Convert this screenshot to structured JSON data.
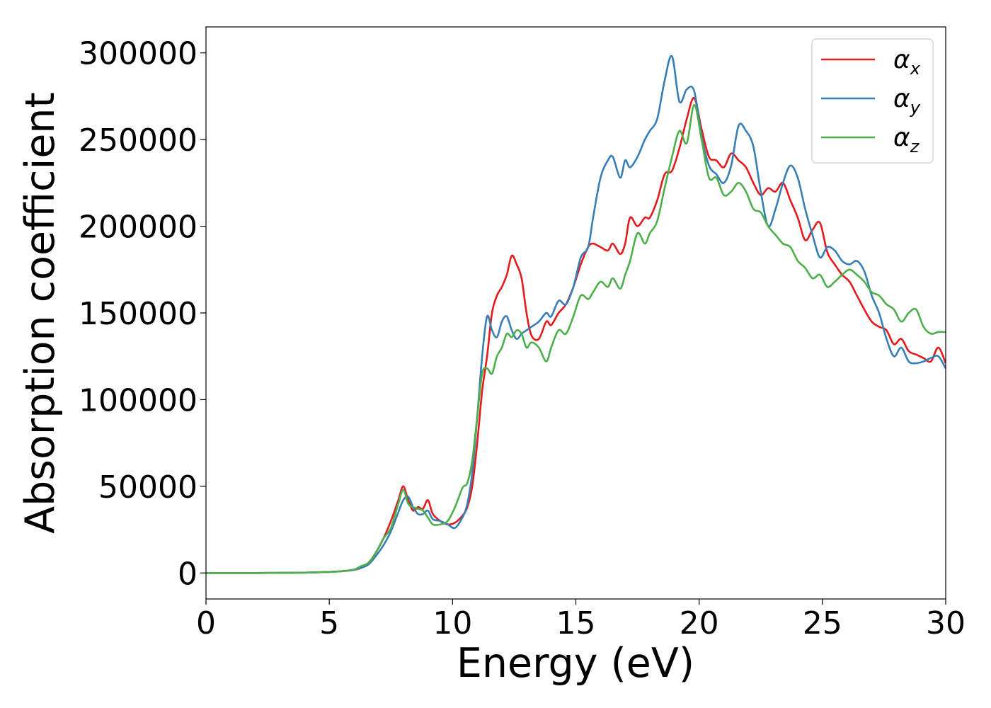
{
  "chart_data": {
    "type": "line",
    "title": "",
    "xlabel": "Energy (eV)",
    "ylabel": "Absorption coefficient",
    "xlim": [
      0,
      30
    ],
    "ylim": [
      -15000,
      315000
    ],
    "x_ticks": [
      0,
      5,
      10,
      15,
      20,
      25,
      30
    ],
    "y_ticks": [
      0,
      50000,
      100000,
      150000,
      200000,
      250000,
      300000
    ],
    "x_tick_labels": [
      "0",
      "5",
      "10",
      "15",
      "20",
      "25",
      "30"
    ],
    "y_tick_labels": [
      "0",
      "50000",
      "100000",
      "150000",
      "200000",
      "250000",
      "300000"
    ],
    "grid": false,
    "legend_position": "top-right",
    "series": [
      {
        "name": "α_x",
        "label_base": "α",
        "label_sub": "x",
        "color": "#e41a1c",
        "x": [
          0,
          2,
          4,
          5,
          5.5,
          6,
          6.3,
          6.6,
          6.9,
          7.2,
          7.5,
          7.8,
          8.0,
          8.2,
          8.4,
          8.6,
          8.8,
          9.0,
          9.2,
          9.5,
          9.8,
          10.1,
          10.4,
          10.6,
          10.8,
          11.0,
          11.2,
          11.4,
          11.6,
          11.8,
          12.0,
          12.2,
          12.4,
          12.6,
          12.8,
          13.0,
          13.2,
          13.5,
          13.8,
          14.0,
          14.3,
          14.6,
          14.9,
          15.2,
          15.5,
          15.7,
          16.0,
          16.3,
          16.5,
          16.8,
          17.0,
          17.2,
          17.5,
          17.8,
          18.0,
          18.3,
          18.6,
          18.9,
          19.2,
          19.5,
          19.8,
          20.1,
          20.4,
          20.7,
          21.0,
          21.3,
          21.6,
          21.9,
          22.2,
          22.5,
          22.8,
          23.1,
          23.4,
          23.7,
          24.0,
          24.3,
          24.6,
          24.9,
          25.2,
          25.5,
          25.8,
          26.1,
          26.4,
          26.7,
          27.0,
          27.3,
          27.6,
          27.9,
          28.2,
          28.5,
          28.8,
          29.1,
          29.4,
          29.7,
          30.0
        ],
        "values": [
          0,
          0,
          200,
          600,
          1000,
          1800,
          3000,
          6000,
          12000,
          20000,
          30000,
          42000,
          50000,
          42000,
          36000,
          38000,
          37000,
          42000,
          34000,
          30000,
          28000,
          29000,
          33000,
          38000,
          50000,
          75000,
          105000,
          125000,
          150000,
          160000,
          165000,
          172000,
          183000,
          178000,
          170000,
          150000,
          137000,
          135000,
          145000,
          143000,
          150000,
          155000,
          165000,
          178000,
          188000,
          190000,
          188000,
          186000,
          190000,
          184000,
          190000,
          205000,
          200000,
          205000,
          205000,
          215000,
          230000,
          232000,
          245000,
          262000,
          274000,
          256000,
          240000,
          238000,
          234000,
          242000,
          238000,
          234000,
          225000,
          218000,
          222000,
          220000,
          225000,
          215000,
          205000,
          192000,
          198000,
          202000,
          185000,
          178000,
          172000,
          168000,
          160000,
          152000,
          145000,
          142000,
          140000,
          132000,
          135000,
          128000,
          126000,
          124000,
          122000,
          130000,
          121000
        ]
      },
      {
        "name": "α_y",
        "label_base": "α",
        "label_sub": "y",
        "color": "#377eb8",
        "x": [
          0,
          2,
          4,
          5,
          5.5,
          6,
          6.3,
          6.6,
          6.9,
          7.2,
          7.5,
          7.8,
          8.0,
          8.2,
          8.4,
          8.6,
          8.8,
          9.0,
          9.2,
          9.5,
          9.8,
          10.1,
          10.4,
          10.6,
          10.8,
          11.0,
          11.2,
          11.4,
          11.6,
          11.8,
          12.0,
          12.2,
          12.4,
          12.6,
          12.8,
          13.0,
          13.2,
          13.5,
          13.8,
          14.0,
          14.3,
          14.6,
          14.9,
          15.2,
          15.5,
          15.7,
          16.0,
          16.3,
          16.5,
          16.8,
          17.0,
          17.2,
          17.5,
          17.8,
          18.0,
          18.3,
          18.6,
          18.9,
          19.2,
          19.5,
          19.8,
          20.1,
          20.4,
          20.7,
          21.0,
          21.3,
          21.6,
          21.9,
          22.2,
          22.5,
          22.8,
          23.1,
          23.4,
          23.7,
          24.0,
          24.3,
          24.6,
          24.9,
          25.2,
          25.5,
          25.8,
          26.1,
          26.4,
          26.7,
          27.0,
          27.3,
          27.6,
          27.9,
          28.2,
          28.5,
          28.8,
          29.1,
          29.4,
          29.7,
          30.0
        ],
        "values": [
          0,
          0,
          200,
          600,
          1000,
          1800,
          3000,
          5000,
          10000,
          16000,
          24000,
          35000,
          42000,
          44000,
          38000,
          34000,
          34000,
          36000,
          31000,
          30000,
          28000,
          26000,
          32000,
          40000,
          58000,
          90000,
          125000,
          148000,
          140000,
          136000,
          145000,
          148000,
          140000,
          135000,
          138000,
          140000,
          142000,
          145000,
          150000,
          148000,
          157000,
          155000,
          165000,
          182000,
          188000,
          205000,
          228000,
          238000,
          240000,
          228000,
          238000,
          234000,
          240000,
          250000,
          255000,
          262000,
          284000,
          298000,
          272000,
          279000,
          278000,
          252000,
          235000,
          230000,
          225000,
          235000,
          258000,
          255000,
          246000,
          220000,
          200000,
          210000,
          225000,
          235000,
          228000,
          210000,
          195000,
          182000,
          188000,
          186000,
          180000,
          178000,
          180000,
          174000,
          160000,
          150000,
          135000,
          125000,
          130000,
          122000,
          121000,
          122000,
          124000,
          125000,
          118000
        ]
      },
      {
        "name": "α_z",
        "label_base": "α",
        "label_sub": "z",
        "color": "#4daf4a",
        "x": [
          0,
          2,
          4,
          5,
          5.5,
          6,
          6.3,
          6.6,
          6.9,
          7.2,
          7.5,
          7.8,
          8.0,
          8.2,
          8.4,
          8.6,
          8.8,
          9.0,
          9.2,
          9.5,
          9.8,
          10.1,
          10.4,
          10.6,
          10.8,
          11.0,
          11.2,
          11.4,
          11.6,
          11.8,
          12.0,
          12.2,
          12.4,
          12.6,
          12.8,
          13.0,
          13.2,
          13.5,
          13.8,
          14.0,
          14.3,
          14.6,
          14.9,
          15.2,
          15.5,
          15.7,
          16.0,
          16.3,
          16.5,
          16.8,
          17.0,
          17.2,
          17.5,
          17.8,
          18.0,
          18.3,
          18.6,
          18.9,
          19.2,
          19.5,
          19.8,
          20.1,
          20.4,
          20.7,
          21.0,
          21.3,
          21.6,
          21.9,
          22.2,
          22.5,
          22.8,
          23.1,
          23.4,
          23.7,
          24.0,
          24.3,
          24.6,
          24.9,
          25.2,
          25.5,
          25.8,
          26.1,
          26.4,
          26.7,
          27.0,
          27.3,
          27.6,
          27.9,
          28.2,
          28.5,
          28.8,
          29.1,
          29.4,
          29.7,
          30.0
        ],
        "values": [
          0,
          0,
          200,
          600,
          1000,
          2000,
          4000,
          6000,
          12000,
          20000,
          26000,
          40000,
          48000,
          40000,
          38000,
          37000,
          36000,
          32000,
          28000,
          28000,
          30000,
          38000,
          49000,
          52000,
          65000,
          90000,
          115000,
          118000,
          115000,
          125000,
          130000,
          138000,
          136000,
          140000,
          138000,
          130000,
          133000,
          130000,
          122000,
          130000,
          140000,
          138000,
          148000,
          160000,
          158000,
          162000,
          168000,
          165000,
          170000,
          164000,
          172000,
          180000,
          196000,
          190000,
          196000,
          203000,
          222000,
          240000,
          255000,
          248000,
          270000,
          250000,
          228000,
          228000,
          218000,
          220000,
          225000,
          220000,
          210000,
          208000,
          200000,
          195000,
          190000,
          188000,
          180000,
          176000,
          170000,
          172000,
          165000,
          168000,
          172000,
          175000,
          172000,
          168000,
          162000,
          160000,
          155000,
          152000,
          145000,
          150000,
          152000,
          142000,
          138000,
          139000,
          139000
        ]
      }
    ]
  }
}
